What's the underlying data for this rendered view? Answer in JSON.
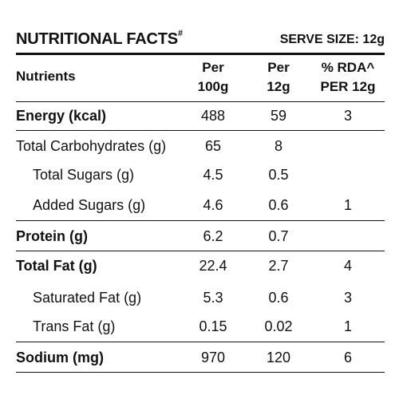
{
  "header": {
    "title": "NUTRITIONAL FACTS",
    "title_mark": "#",
    "serve_size": "SERVE SIZE: 12g"
  },
  "columns": {
    "nutrients": "Nutrients",
    "per100_line1": "Per",
    "per100_line2": "100g",
    "per12_line1": "Per",
    "per12_line2": "12g",
    "rda_line1": "% RDA^",
    "rda_line2": "PER 12g"
  },
  "rows": [
    {
      "name": "Energy (kcal)",
      "per100": "488",
      "per12": "59",
      "rda": "3"
    },
    {
      "name": "Total Carbohydrates (g)",
      "per100": "65",
      "per12": "8",
      "rda": ""
    },
    {
      "name": "Total Sugars (g)",
      "per100": "4.5",
      "per12": "0.5",
      "rda": ""
    },
    {
      "name": "Added Sugars (g)",
      "per100": "4.6",
      "per12": "0.6",
      "rda": "1"
    },
    {
      "name": "Protein (g)",
      "per100": "6.2",
      "per12": "0.7",
      "rda": ""
    },
    {
      "name": "Total Fat (g)",
      "per100": "22.4",
      "per12": "2.7",
      "rda": "4"
    },
    {
      "name": "Saturated Fat (g)",
      "per100": "5.3",
      "per12": "0.6",
      "rda": "3"
    },
    {
      "name": "Trans Fat (g)",
      "per100": "0.15",
      "per12": "0.02",
      "rda": "1"
    },
    {
      "name": "Sodium (mg)",
      "per100": "970",
      "per12": "120",
      "rda": "6"
    }
  ]
}
